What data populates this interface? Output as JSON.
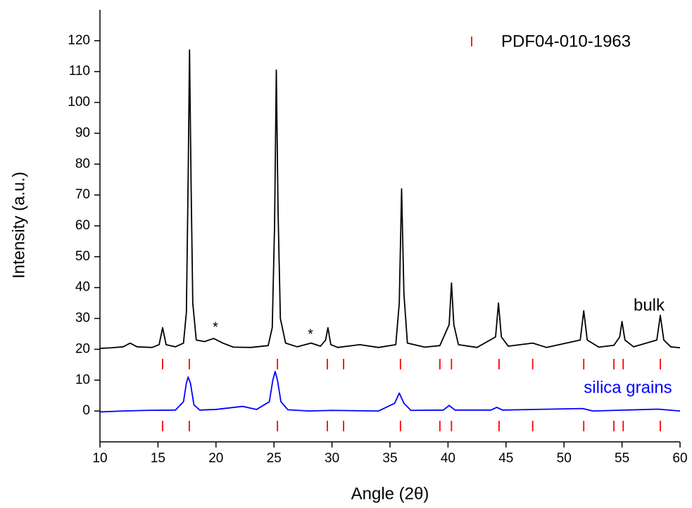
{
  "chart_data": {
    "type": "line",
    "xlabel": "Angle (2θ)",
    "ylabel": "Intensity (a.u.)",
    "xlim": [
      10,
      60
    ],
    "xticks": [
      10,
      15,
      20,
      25,
      30,
      35,
      40,
      45,
      50,
      55,
      60
    ],
    "ylim": [
      -10,
      130
    ],
    "yticks": [
      0,
      10,
      20,
      30,
      40,
      50,
      60,
      70,
      80,
      90,
      100,
      110,
      120
    ],
    "legend": "upper right",
    "series": [
      {
        "name": "bulk",
        "color": "#000000",
        "x": [
          10,
          11,
          12,
          12.6,
          13.2,
          14.5,
          15.1,
          15.4,
          15.7,
          16.5,
          17.2,
          17.45,
          17.6,
          17.72,
          17.85,
          18.0,
          18.3,
          19,
          19.8,
          20.6,
          21.5,
          23,
          24.5,
          24.85,
          25.05,
          25.2,
          25.35,
          25.55,
          26,
          27,
          28.2,
          29,
          29.45,
          29.65,
          29.9,
          30.5,
          32.4,
          34,
          35.5,
          35.8,
          36.0,
          36.2,
          36.5,
          38,
          39.3,
          40.1,
          40.3,
          40.5,
          40.9,
          42.5,
          44.1,
          44.35,
          44.6,
          45.2,
          47.3,
          48.5,
          51.4,
          51.7,
          52,
          53,
          54.3,
          54.8,
          55.0,
          55.25,
          56,
          58,
          58.3,
          58.6,
          59.2,
          60
        ],
        "values": [
          20.3,
          20.5,
          20.8,
          22,
          20.8,
          20.6,
          21.5,
          27,
          21.5,
          20.8,
          22,
          32,
          75,
          117,
          75,
          35,
          23,
          22.5,
          23.5,
          22,
          20.7,
          20.6,
          21.2,
          27,
          60,
          110.5,
          65,
          30,
          22,
          20.8,
          22,
          21,
          23,
          27,
          21.5,
          20.6,
          21.5,
          20.6,
          21.5,
          35,
          72,
          38,
          22,
          20.7,
          21.2,
          28,
          41.5,
          28,
          21.5,
          20.6,
          24,
          35,
          24,
          21,
          22,
          20.6,
          23,
          32.5,
          23,
          20.7,
          21.3,
          24,
          29,
          23,
          20.8,
          23,
          31,
          23,
          20.8,
          20.5
        ]
      },
      {
        "name": "silica grains",
        "color": "#0000ff",
        "x": [
          10,
          12,
          14,
          16.5,
          17.2,
          17.45,
          17.6,
          17.8,
          18.1,
          18.6,
          20,
          22.3,
          23.5,
          24.6,
          24.9,
          25.1,
          25.3,
          25.6,
          26.2,
          28,
          30,
          34,
          35.4,
          35.8,
          36.2,
          36.8,
          39.6,
          40.1,
          40.6,
          43.7,
          44.2,
          44.7,
          51.6,
          52.5,
          58.1,
          60
        ],
        "values": [
          -0.3,
          0,
          0.2,
          0.3,
          3,
          9,
          11,
          9,
          2,
          0.3,
          0.5,
          1.5,
          0.5,
          3,
          10,
          12.8,
          10,
          3,
          0.4,
          0,
          0.2,
          0,
          2.5,
          5.8,
          2.5,
          0.2,
          0.3,
          1.8,
          0.3,
          0.3,
          1.2,
          0.3,
          0.8,
          0,
          0.6,
          0
        ]
      }
    ],
    "reference": {
      "name": "PDF04-010-1963",
      "color": "#ff0000",
      "positions": [
        15.4,
        17.7,
        25.3,
        29.6,
        31.0,
        35.9,
        39.3,
        40.3,
        44.4,
        47.3,
        51.7,
        54.3,
        55.1,
        58.3
      ]
    },
    "annotations": [
      "*",
      "*"
    ]
  }
}
